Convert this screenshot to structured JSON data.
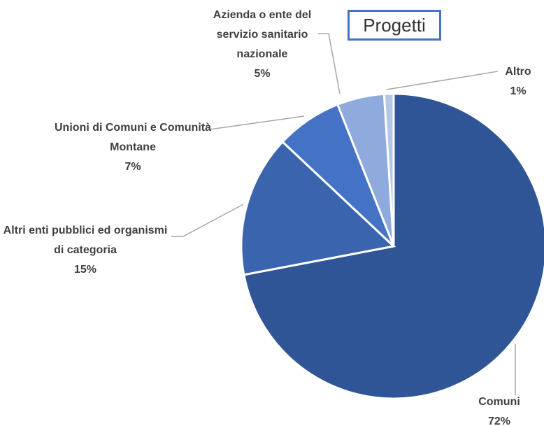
{
  "chart_data": {
    "type": "pie",
    "title": "Progetti",
    "categories": [
      "Comuni",
      "Altri enti pubblici ed organismi di categoria",
      "Unioni di Comuni e Comunità Montane",
      "Azienda o ente del servizio sanitario nazionale",
      "Altro"
    ],
    "values": [
      72,
      15,
      7,
      5,
      1
    ],
    "value_labels": [
      "72%",
      "15%",
      "7%",
      "5%",
      "1%"
    ],
    "colors": [
      "#2f5597",
      "#3a64ad",
      "#4472c4",
      "#8faadc",
      "#b4c7e7"
    ]
  }
}
